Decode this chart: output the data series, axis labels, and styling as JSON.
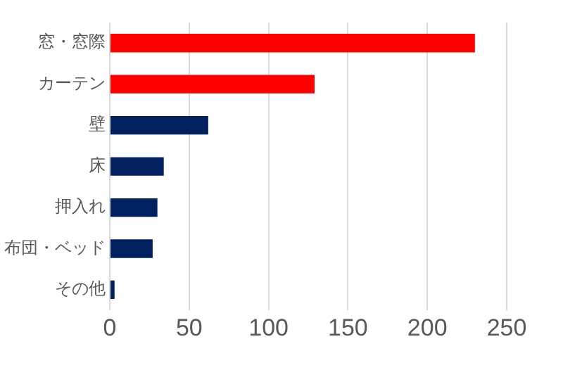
{
  "chart_data": {
    "type": "bar",
    "orientation": "horizontal",
    "categories": [
      "窓・窓際",
      "カーテン",
      "壁",
      "床",
      "押入れ",
      "布団・ベッド",
      "その他"
    ],
    "values": [
      230,
      129,
      62,
      34,
      30,
      27,
      3
    ],
    "colors": [
      "#ff0000",
      "#ff0000",
      "#002060",
      "#002060",
      "#002060",
      "#002060",
      "#002060"
    ],
    "xlim": [
      0,
      250
    ],
    "xticks": [
      0,
      50,
      100,
      150,
      200,
      250
    ],
    "grid": "x",
    "legend": false
  }
}
